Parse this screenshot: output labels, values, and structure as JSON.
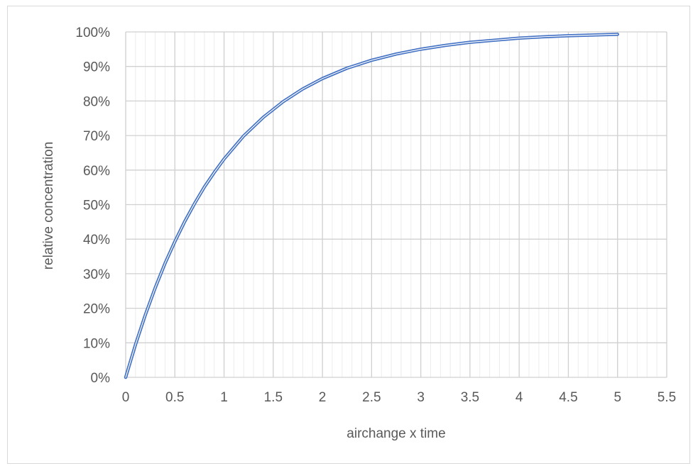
{
  "chart_data": {
    "type": "line",
    "title": "",
    "xlabel": "airchange x time",
    "ylabel": "relative concentration",
    "xlim": [
      0,
      5.5
    ],
    "ylim": [
      0,
      1
    ],
    "x_ticks": [
      0,
      0.5,
      1,
      1.5,
      2,
      2.5,
      3,
      3.5,
      4,
      4.5,
      5,
      5.5
    ],
    "x_tick_labels": [
      "0",
      "0.5",
      "1",
      "1.5",
      "2",
      "2.5",
      "3",
      "3.5",
      "4",
      "4.5",
      "5",
      "5.5"
    ],
    "x_minor_step": 0.1,
    "y_ticks": [
      0,
      0.1,
      0.2,
      0.3,
      0.4,
      0.5,
      0.6,
      0.7,
      0.8,
      0.9,
      1.0
    ],
    "y_tick_labels": [
      "0%",
      "10%",
      "20%",
      "30%",
      "40%",
      "50%",
      "60%",
      "70%",
      "80%",
      "90%",
      "100%"
    ],
    "grid": true,
    "legend": "none",
    "series": [
      {
        "color": "#4472c4",
        "x": [
          0,
          0.1,
          0.2,
          0.3,
          0.4,
          0.5,
          0.6,
          0.7,
          0.8,
          0.9,
          1.0,
          1.2,
          1.4,
          1.6,
          1.8,
          2.0,
          2.25,
          2.5,
          2.75,
          3.0,
          3.25,
          3.5,
          3.75,
          4.0,
          4.25,
          4.5,
          4.75,
          5.0
        ],
        "y": [
          0,
          0.095,
          0.181,
          0.259,
          0.33,
          0.393,
          0.451,
          0.503,
          0.551,
          0.593,
          0.632,
          0.699,
          0.753,
          0.798,
          0.835,
          0.865,
          0.895,
          0.918,
          0.936,
          0.95,
          0.961,
          0.97,
          0.976,
          0.982,
          0.986,
          0.989,
          0.991,
          0.993
        ]
      }
    ]
  }
}
